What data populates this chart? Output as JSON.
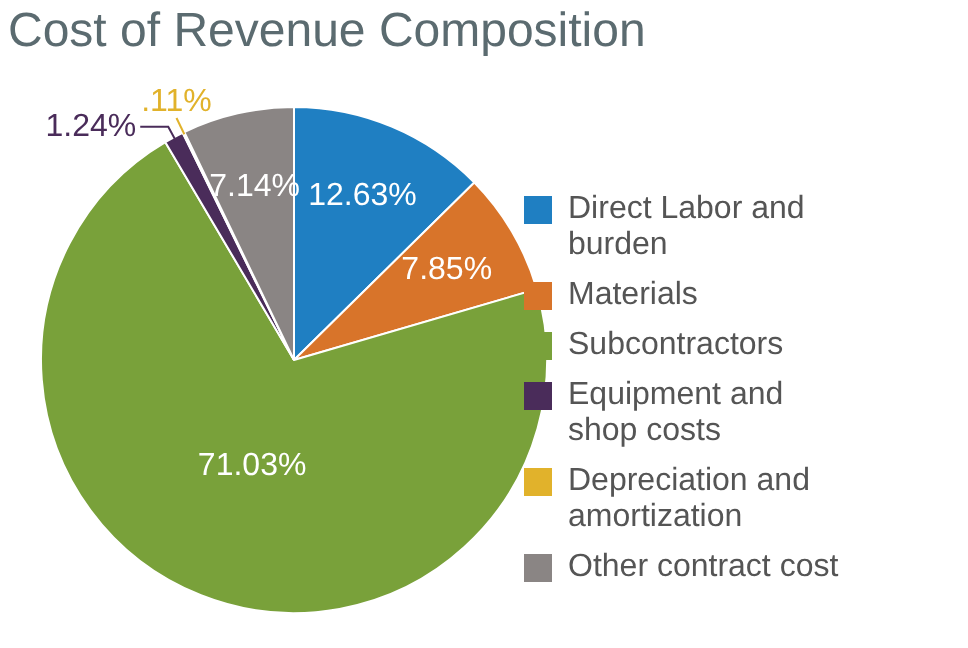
{
  "chart_data": {
    "type": "pie",
    "title": "Cost of Revenue Composition",
    "categories": [
      "Direct Labor and burden",
      "Materials",
      "Subcontractors",
      "Equipment and shop costs",
      "Depreciation and amortization",
      "Other contract cost"
    ],
    "values": [
      12.63,
      7.85,
      71.03,
      1.24,
      0.11,
      7.14
    ],
    "colors": [
      "#1f7fc2",
      "#d8742a",
      "#79a13a",
      "#4a2c5a",
      "#e1b22b",
      "#8a8584"
    ],
    "value_labels": [
      "12.63%",
      "7.85%",
      "71.03%",
      "1.24%",
      ".11%",
      "7.14%"
    ],
    "legend": "right"
  }
}
